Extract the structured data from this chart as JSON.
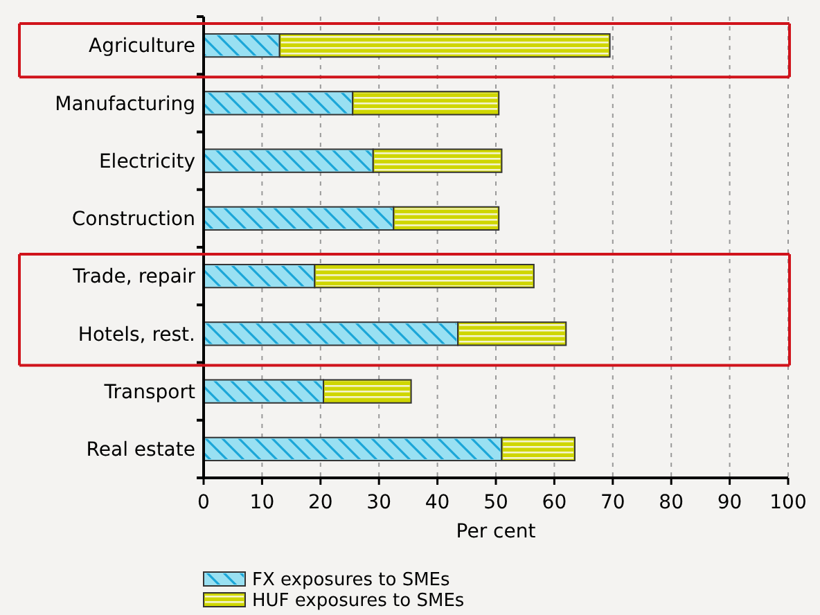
{
  "chart_data": {
    "type": "bar",
    "orientation": "horizontal",
    "stacked": true,
    "xlabel": "Per cent",
    "categories": [
      "Agriculture",
      "Manufacturing",
      "Electricity",
      "Construction",
      "Trade, repair",
      "Hotels, rest.",
      "Transport",
      "Real estate"
    ],
    "series": [
      {
        "name": "FX exposures to SMEs",
        "color": "#99e0f2",
        "values": [
          13,
          25.5,
          29,
          32.5,
          19,
          43.5,
          20.5,
          51
        ]
      },
      {
        "name": "HUF exposures to SMEs",
        "color": "#cfd600",
        "values": [
          56.5,
          25,
          22,
          18,
          37.5,
          18.5,
          15,
          12.5
        ]
      }
    ],
    "xlim": [
      0,
      100
    ],
    "xticks": [
      0,
      10,
      20,
      30,
      40,
      50,
      60,
      70,
      80,
      90,
      100
    ],
    "grid": "x",
    "legend": "bottom"
  }
}
